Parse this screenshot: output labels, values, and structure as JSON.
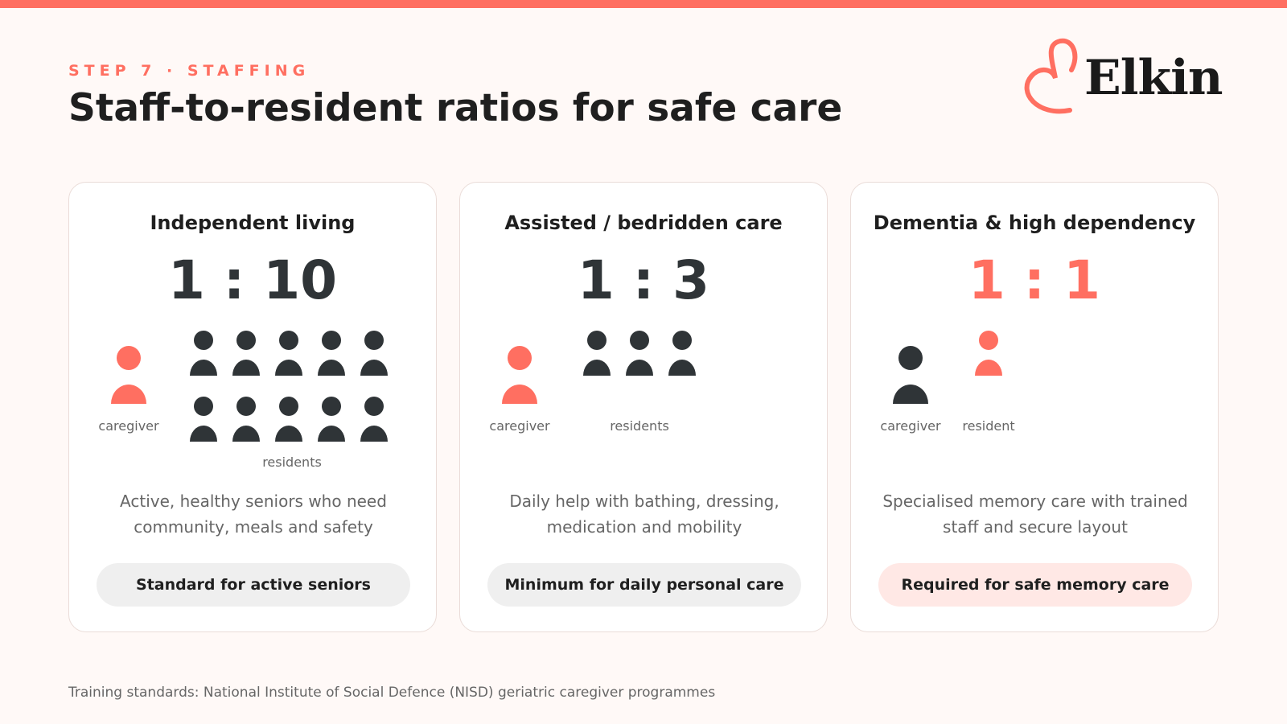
{
  "eyebrow": "STEP 7 · STAFFING",
  "title": "Staff-to-resident ratios for safe care",
  "logo": {
    "text": "Elkin",
    "icon": "heart-outline-icon",
    "color": "#ff6f61"
  },
  "colors": {
    "accent": "#ff6f61",
    "dark": "#2f3437",
    "muted": "#666666"
  },
  "cards": [
    {
      "title": "Independent living",
      "ratio": "1 : 10",
      "caregiver_label": "caregiver",
      "residents_label": "residents",
      "caregivers": 1,
      "residents": 10,
      "description": "Active, healthy seniors who need community, meals and safety",
      "pill": "Standard for active seniors"
    },
    {
      "title": "Assisted / bedridden care",
      "ratio": "1 : 3",
      "caregiver_label": "caregiver",
      "residents_label": "residents",
      "caregivers": 1,
      "residents": 3,
      "description": "Daily help with bathing, dressing, medication and mobility",
      "pill": "Minimum for daily personal care"
    },
    {
      "title": "Dementia & high dependency",
      "ratio": "1 : 1",
      "caregiver_label": "caregiver",
      "residents_label": "resident",
      "caregivers": 1,
      "residents": 1,
      "description": "Specialised memory care with trained staff and secure layout",
      "pill": "Required for safe memory care"
    }
  ],
  "footnote": "Training standards: National Institute of Social Defence (NISD) geriatric caregiver programmes"
}
